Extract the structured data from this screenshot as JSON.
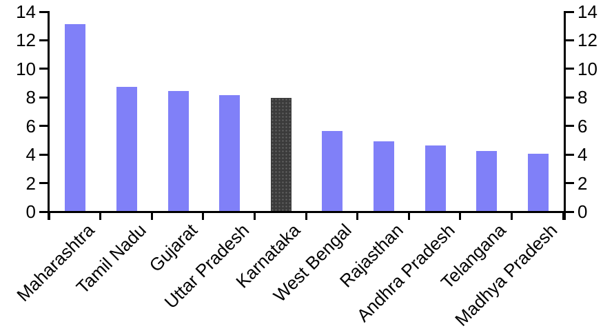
{
  "chart_data": {
    "type": "bar",
    "categories": [
      "Maharashtra",
      "Tamil Nadu",
      "Gujarat",
      "Uttar Pradesh",
      "Karnataka",
      "West Bengal",
      "Rajasthan",
      "Andhra Pradesh",
      "Telangana",
      "Madhya Pradesh"
    ],
    "values": [
      13.1,
      8.7,
      8.4,
      8.1,
      7.9,
      5.6,
      4.9,
      4.6,
      4.2,
      4.0
    ],
    "highlight_category": "Karnataka",
    "title": "",
    "xlabel": "",
    "ylabel": "",
    "ylim": [
      0,
      14
    ],
    "yticks": [
      0,
      2,
      4,
      6,
      8,
      10,
      12,
      14
    ],
    "y_axes": [
      "left",
      "right"
    ],
    "grid": false,
    "legend": "none",
    "bar_color": "#8080f8",
    "highlight_bar_color": "#3b3b3b",
    "axis_color": "#000000",
    "x_label_rotation_deg": 45
  }
}
